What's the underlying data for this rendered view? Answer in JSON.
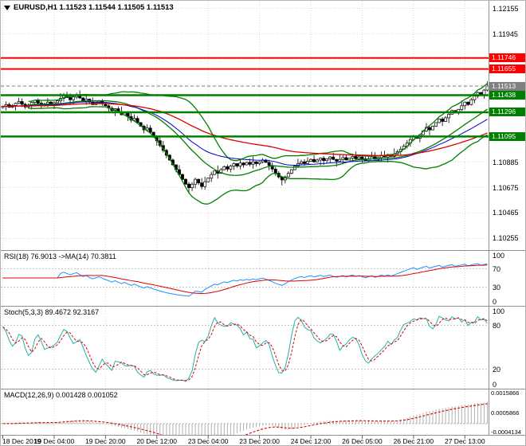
{
  "window": {
    "title": "EURUSD,H1 1.11523 1.11544 1.11505 1.11513"
  },
  "colors": {
    "background": "#ffffff",
    "candle_up": "#ffffff",
    "candle_down": "#000000",
    "candle_outline": "#000000",
    "bollinger": "#008000",
    "ma_fast": "#0000cc",
    "ma_slow": "#dd0000",
    "resistance": "#ff0000",
    "support": "#008000",
    "current_price_badge": "#808080",
    "rsi_line": "#1e90ff",
    "rsi_ma": "#dd0000",
    "stoch_k": "#20b2aa",
    "stoch_d": "#dd0000",
    "macd_hist": "#b0b0b0",
    "macd_signal": "#dd0000",
    "grid": "#d8d8d8",
    "panel_border": "#909090",
    "axis_text": "#000000"
  },
  "chart_data": {
    "type": "candlestick",
    "symbol": "EURUSD",
    "timeframe": "H1",
    "ohlc": {
      "open": 1.11523,
      "high": 1.11544,
      "low": 1.11505,
      "close": 1.11513
    },
    "price_range": {
      "max": 1.1222,
      "min": 1.1016
    },
    "bars_per_label": 16,
    "x_labels": [
      "18 Dec 2019",
      "19 Dec 04:00",
      "19 Dec 20:00",
      "20 Dec 12:00",
      "23 Dec 04:00",
      "23 Dec 20:00",
      "24 Dec 12:00",
      "26 Dec 05:00",
      "26 Dec 21:00",
      "27 Dec 13:00"
    ],
    "price_axis_ticks": [
      {
        "text": "1.12155",
        "value": 1.12155
      },
      {
        "text": "1.11945",
        "value": 1.11945
      },
      {
        "text": "1.10885",
        "value": 1.10885
      },
      {
        "text": "1.10675",
        "value": 1.10675
      },
      {
        "text": "1.10465",
        "value": 1.10465
      },
      {
        "text": "1.10255",
        "value": 1.10255
      }
    ],
    "price_levels": [
      {
        "text": "1.11746",
        "value": 1.11746,
        "color": "#ff0000",
        "width": 2,
        "dash": false,
        "role": "resistance"
      },
      {
        "text": "1.11655",
        "value": 1.11655,
        "color": "#ff0000",
        "width": 2,
        "dash": false,
        "role": "resistance"
      },
      {
        "text": "1.11513",
        "value": 1.11513,
        "color": "#808080",
        "width": 1,
        "dash": true,
        "role": "current-price"
      },
      {
        "text": "1.11438",
        "value": 1.11438,
        "color": "#008000",
        "width": 2.5,
        "dash": false,
        "role": "support"
      },
      {
        "text": "1.11296",
        "value": 1.11296,
        "color": "#008000",
        "width": 2.5,
        "dash": false,
        "role": "support"
      },
      {
        "text": "1.11095",
        "value": 1.11095,
        "color": "#008000",
        "width": 2.5,
        "dash": false,
        "role": "support"
      }
    ],
    "closes": [
      1.11345,
      1.1136,
      1.11338,
      1.11352,
      1.1137,
      1.11385,
      1.11362,
      1.1134,
      1.11355,
      1.11378,
      1.11395,
      1.11372,
      1.1135,
      1.11365,
      1.1138,
      1.11358,
      1.11375,
      1.1139,
      1.1141,
      1.11432,
      1.11418,
      1.114,
      1.11422,
      1.11438,
      1.11415,
      1.11392,
      1.11405,
      1.1138,
      1.1136,
      1.11375,
      1.1139,
      1.1137,
      1.1135,
      1.1133,
      1.1131,
      1.11325,
      1.113,
      1.11275,
      1.1129,
      1.1126,
      1.1123,
      1.11245,
      1.1121,
      1.1118,
      1.1115,
      1.11165,
      1.1113,
      1.11095,
      1.1106,
      1.1102,
      1.1098,
      1.1094,
      1.109,
      1.1086,
      1.1082,
      1.1078,
      1.1074,
      1.107,
      1.1067,
      1.107,
      1.1074,
      1.1071,
      1.1068,
      1.1072,
      1.1075,
      1.1078,
      1.1081,
      1.1079,
      1.1082,
      1.10845,
      1.10825,
      1.1085,
      1.1087,
      1.1085,
      1.10875,
      1.1086,
      1.1088,
      1.10865,
      1.10885,
      1.1087,
      1.10885,
      1.109,
      1.1088,
      1.10855,
      1.10825,
      1.1079,
      1.1076,
      1.10735,
      1.1076,
      1.1079,
      1.1082,
      1.1085,
      1.1087,
      1.10885,
      1.1087,
      1.1089,
      1.10905,
      1.10885,
      1.109,
      1.10915,
      1.10895,
      1.1091,
      1.10925,
      1.10905,
      1.1089,
      1.10905,
      1.1092,
      1.109,
      1.10915,
      1.1093,
      1.1091,
      1.10925,
      1.1091,
      1.10895,
      1.1091,
      1.10925,
      1.10905,
      1.1092,
      1.1094,
      1.10925,
      1.10945,
      1.1093,
      1.1095,
      1.1097,
      1.1099,
      1.11015,
      1.1104,
      1.1107,
      1.111,
      1.1108,
      1.1111,
      1.1114,
      1.1117,
      1.1115,
      1.1118,
      1.1121,
      1.1124,
      1.1122,
      1.1125,
      1.1128,
      1.1131,
      1.1129,
      1.1132,
      1.1135,
      1.1138,
      1.1136,
      1.114,
      1.1143,
      1.1146,
      1.1144,
      1.1148,
      1.11513
    ],
    "indicators": {
      "rsi": {
        "label": "RSI(18) 76.9013 ->MA(14) 70.3811",
        "period": 18,
        "ma_period": 14,
        "last": 76.9013,
        "ma_last": 70.3811,
        "levels": [
          70,
          30
        ],
        "axis_ticks": [
          {
            "text": "100",
            "value": 100
          },
          {
            "text": "70",
            "value": 70
          },
          {
            "text": "30",
            "value": 30
          },
          {
            "text": "0",
            "value": 0
          }
        ]
      },
      "stoch": {
        "label": "Stoch(5,3,3) 89.4672 92.3167",
        "k_period": 5,
        "slowing": 3,
        "d_period": 3,
        "last_k": 89.4672,
        "last_d": 92.3167,
        "levels": [
          80,
          20
        ],
        "axis_ticks": [
          {
            "text": "100",
            "value": 100
          },
          {
            "text": "80",
            "value": 80
          },
          {
            "text": "20",
            "value": 20
          },
          {
            "text": "0",
            "value": 0
          }
        ]
      },
      "macd": {
        "label": "MACD(12,26,9) 0.001428 0.001052",
        "fast": 12,
        "slow": 26,
        "signal": 9,
        "last": 0.001428,
        "last_signal": 0.001052,
        "axis_ticks": [
          {
            "text": "0.0015866",
            "value": 0.0015866
          },
          {
            "text": "0.0005866",
            "value": 0.0005866
          },
          {
            "text": "-0.0004134",
            "value": -0.0004134
          }
        ]
      }
    }
  }
}
